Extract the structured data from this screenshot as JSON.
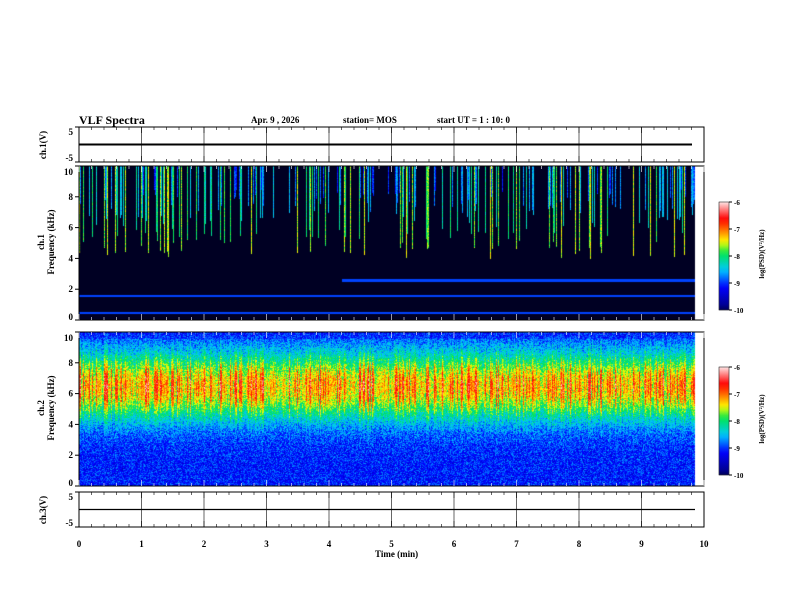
{
  "chart_data": {
    "type": "heatmap",
    "title": "VLF Spectra",
    "date": "Apr. 9  , 2026",
    "station": "station= MOS",
    "start_ut": "start  UT =   1 : 10: 0",
    "xlabel": "Time  (min)",
    "xlim": [
      0,
      10
    ],
    "xticks": [
      "0",
      "1",
      "2",
      "3",
      "4",
      "5",
      "6",
      "7",
      "8",
      "9",
      "10"
    ],
    "data_end_min": 9.85,
    "panels": [
      {
        "name": "ch1-waveform",
        "ylabel": "ch.1(V)",
        "ylim": [
          -5,
          5
        ],
        "yticks": [
          "5",
          "-5"
        ],
        "level": 0
      },
      {
        "name": "ch1-spectrogram",
        "ylabel": "ch.1\nFrequency (kHz)",
        "ylabel_lines": [
          "ch.1",
          "Frequency (kHz)"
        ],
        "ylim": [
          0,
          10
        ],
        "yticks": [
          "0",
          "2",
          "4",
          "6",
          "8",
          "10"
        ],
        "colorbar": {
          "label": "log(PSD)(V²/Hz)",
          "range": [
            -10,
            -6
          ],
          "ticks": [
            "-6",
            "-7",
            "-8",
            "-9",
            "-10"
          ]
        },
        "lines_khz": [
          0.5,
          1.6
        ],
        "lines_after_4_2min_khz": [
          2.6
        ],
        "background_level": -10,
        "emission_band_khz": [
          4,
          9.5
        ],
        "emission_peak_level": -8
      },
      {
        "name": "ch2-spectrogram",
        "ylabel_lines": [
          "ch.2",
          "Frequency (kHz)"
        ],
        "ylim": [
          0,
          10
        ],
        "yticks": [
          "0",
          "2",
          "4",
          "6",
          "8",
          "10"
        ],
        "colorbar": {
          "label": "log(PSD)(V²/Hz)",
          "range": [
            -10,
            -6
          ],
          "ticks": [
            "-6",
            "-7",
            "-8",
            "-9",
            "-10"
          ]
        },
        "background_level": -9.3,
        "emission_band_khz": [
          3,
          9.5
        ],
        "emission_peak_level": -7,
        "peak_center_khz": 6.5
      },
      {
        "name": "ch3-waveform",
        "ylabel": "ch.3(V)",
        "ylim": [
          -5,
          5
        ],
        "yticks": [
          "5",
          "-5"
        ],
        "level": 0
      }
    ]
  }
}
